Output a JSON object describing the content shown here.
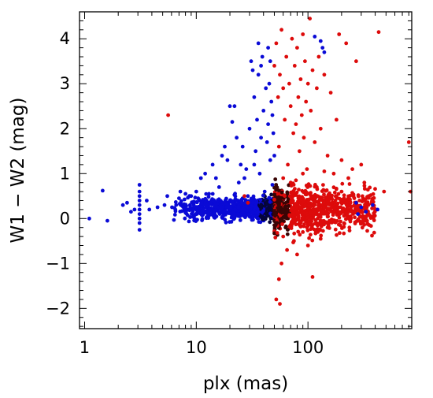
{
  "chart_data": {
    "type": "scatter",
    "title": "",
    "xlabel": "plx (mas)",
    "ylabel": "W1 − W2 (mag)",
    "xscale": "log",
    "xlim": [
      0.9,
      850
    ],
    "ylim": [
      -2.45,
      4.6
    ],
    "grid": false,
    "legend": "none",
    "x_ticks": [
      1,
      10,
      100
    ],
    "x_tick_labels": [
      "1",
      "10",
      "100"
    ],
    "y_ticks": [
      -2,
      -1,
      0,
      1,
      2,
      3,
      4
    ],
    "y_tick_labels": [
      "−2",
      "−1",
      "0",
      "1",
      "2",
      "3",
      "4"
    ],
    "series": [
      {
        "color": "#0a0ad6",
        "points": [
          [
            1.1,
            0.0
          ],
          [
            1.45,
            0.62
          ],
          [
            1.6,
            -0.05
          ],
          [
            2.2,
            0.3
          ],
          [
            2.4,
            0.35
          ],
          [
            2.6,
            0.15
          ],
          [
            2.8,
            0.2
          ],
          [
            3.1,
            0.75
          ],
          [
            3.1,
            0.6
          ],
          [
            3.1,
            0.5
          ],
          [
            3.1,
            0.4
          ],
          [
            3.1,
            0.3
          ],
          [
            3.1,
            0.2
          ],
          [
            3.1,
            0.1
          ],
          [
            3.1,
            0.0
          ],
          [
            3.1,
            -0.1
          ],
          [
            3.1,
            -0.25
          ],
          [
            3.6,
            0.4
          ],
          [
            3.8,
            0.2
          ],
          [
            4.5,
            0.25
          ],
          [
            5.2,
            0.3
          ],
          [
            5.5,
            0.5
          ],
          [
            6.5,
            0.2
          ],
          [
            7.0,
            0.45
          ],
          [
            7.2,
            0.6
          ],
          [
            8.0,
            0.55
          ],
          [
            9.0,
            0.5
          ],
          [
            9.5,
            0.35
          ],
          [
            10,
            0.6
          ],
          [
            11,
            0.9
          ],
          [
            12,
            1.0
          ],
          [
            13,
            0.55
          ],
          [
            14,
            1.2
          ],
          [
            15,
            0.9
          ],
          [
            16,
            0.7
          ],
          [
            17,
            1.4
          ],
          [
            18,
            1.6
          ],
          [
            19,
            1.3
          ],
          [
            20,
            2.5
          ],
          [
            21,
            2.15
          ],
          [
            22,
            2.5
          ],
          [
            23,
            1.8
          ],
          [
            24,
            0.8
          ],
          [
            25,
            1.2
          ],
          [
            26,
            1.6
          ],
          [
            27,
            0.9
          ],
          [
            28,
            1.1
          ],
          [
            30,
            2.0
          ],
          [
            31,
            3.5
          ],
          [
            32,
            3.3
          ],
          [
            33,
            2.7
          ],
          [
            34,
            1.5
          ],
          [
            35,
            2.2
          ],
          [
            36,
            3.2
          ],
          [
            37,
            1.0
          ],
          [
            38,
            1.8
          ],
          [
            39,
            3.6
          ],
          [
            40,
            2.4
          ],
          [
            41,
            0.6
          ],
          [
            42,
            2.9
          ],
          [
            43,
            1.7
          ],
          [
            44,
            2.1
          ],
          [
            45,
            3.0
          ],
          [
            46,
            1.3
          ],
          [
            47,
            2.6
          ],
          [
            48,
            0.75
          ],
          [
            36,
            3.9
          ],
          [
            38,
            3.4
          ],
          [
            44,
            3.8
          ],
          [
            46,
            3.5
          ],
          [
            48,
            2.3
          ],
          [
            33,
            1.2
          ],
          [
            29,
            0.5
          ],
          [
            26,
            0.45
          ],
          [
            50,
            1.4
          ],
          [
            49,
            1.9
          ],
          [
            130,
            3.95
          ],
          [
            135,
            3.8
          ],
          [
            140,
            3.7
          ],
          [
            270,
            0.35
          ],
          [
            300,
            0.25
          ],
          [
            330,
            0.15
          ],
          [
            380,
            0.3
          ],
          [
            280,
            0.1
          ],
          [
            420,
            0.2
          ],
          [
            115,
            4.05
          ]
        ]
      },
      {
        "color": "#dd0b0b",
        "points": [
          [
            5.6,
            2.3
          ],
          [
            27,
            0.5
          ],
          [
            29,
            0.35
          ],
          [
            50,
            3.4
          ],
          [
            52,
            3.9
          ],
          [
            54,
            2.7
          ],
          [
            55,
            1.6
          ],
          [
            56,
            3.2
          ],
          [
            58,
            4.2
          ],
          [
            60,
            2.9
          ],
          [
            62,
            2.2
          ],
          [
            64,
            3.6
          ],
          [
            66,
            1.2
          ],
          [
            68,
            3.0
          ],
          [
            70,
            2.5
          ],
          [
            72,
            4.0
          ],
          [
            74,
            1.9
          ],
          [
            76,
            3.4
          ],
          [
            78,
            2.1
          ],
          [
            80,
            3.8
          ],
          [
            82,
            2.7
          ],
          [
            84,
            1.5
          ],
          [
            86,
            3.1
          ],
          [
            88,
            2.3
          ],
          [
            90,
            4.1
          ],
          [
            92,
            1.8
          ],
          [
            94,
            3.5
          ],
          [
            96,
            2.6
          ],
          [
            98,
            1.1
          ],
          [
            100,
            3.0
          ],
          [
            104,
            4.45
          ],
          [
            106,
            2.4
          ],
          [
            110,
            3.3
          ],
          [
            115,
            1.7
          ],
          [
            120,
            2.9
          ],
          [
            125,
            3.6
          ],
          [
            130,
            2.0
          ],
          [
            140,
            3.2
          ],
          [
            150,
            1.4
          ],
          [
            160,
            2.8
          ],
          [
            170,
            1.0
          ],
          [
            180,
            2.2
          ],
          [
            190,
            4.1
          ],
          [
            200,
            1.3
          ],
          [
            220,
            3.9
          ],
          [
            230,
            0.9
          ],
          [
            250,
            1.1
          ],
          [
            270,
            3.5
          ],
          [
            300,
            1.2
          ],
          [
            320,
            0.8
          ],
          [
            350,
            0.5
          ],
          [
            430,
            4.15
          ],
          [
            480,
            0.6
          ],
          [
            800,
            1.7
          ],
          [
            830,
            0.6
          ],
          [
            52,
            -1.8
          ],
          [
            56,
            -1.9
          ],
          [
            55,
            -1.35
          ],
          [
            58,
            -1.0
          ],
          [
            60,
            -0.4
          ],
          [
            65,
            -0.7
          ],
          [
            70,
            -0.2
          ],
          [
            75,
            -0.5
          ],
          [
            80,
            -0.8
          ],
          [
            90,
            -0.3
          ],
          [
            100,
            -0.6
          ],
          [
            110,
            -1.3
          ],
          [
            120,
            -0.1
          ],
          [
            130,
            -0.45
          ],
          [
            150,
            -0.2
          ],
          [
            60,
            0.9
          ],
          [
            70,
            0.8
          ],
          [
            90,
            1.0
          ],
          [
            120,
            0.7
          ],
          [
            140,
            1.05
          ],
          [
            180,
            0.5
          ],
          [
            200,
            0.6
          ],
          [
            240,
            0.35
          ],
          [
            260,
            0.45
          ]
        ]
      }
    ],
    "dense_clusters": [
      {
        "color": "#0a0ad6",
        "x_range": [
          6,
          50
        ],
        "y_center": 0.22,
        "y_spread": 0.12,
        "count": 700
      },
      {
        "color": "#dd0b0b",
        "x_range": [
          50,
          400
        ],
        "y_center": 0.2,
        "y_spread": 0.25,
        "count": 900
      }
    ]
  }
}
